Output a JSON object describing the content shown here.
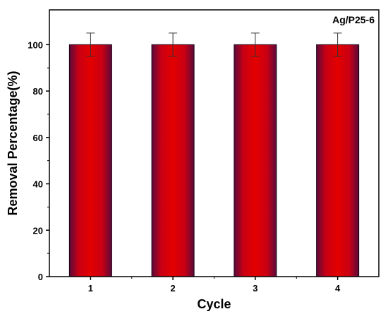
{
  "chart_data": {
    "type": "bar",
    "categories": [
      "1",
      "2",
      "3",
      "4"
    ],
    "values": [
      100,
      100,
      100,
      100
    ],
    "error": [
      5,
      5,
      5,
      5
    ],
    "xlabel": "Cycle",
    "ylabel": "Removal Percentage(%)",
    "annotation": "Ag/P25-6",
    "ylim": [
      0,
      115
    ],
    "yticks": [
      0,
      20,
      40,
      60,
      80,
      100
    ],
    "grid": false,
    "colors": {
      "bar_edge": "#5a0a3a",
      "bar_center": "#e30000",
      "bar_mid": "#c80014",
      "axis": "#000000",
      "error_bar": "#333333"
    }
  }
}
